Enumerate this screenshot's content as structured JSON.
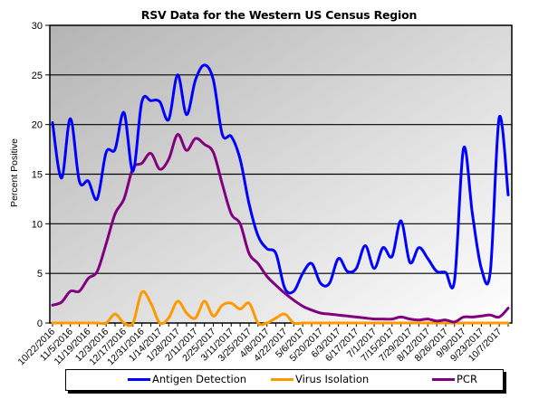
{
  "chart_data": {
    "type": "line",
    "title": "RSV Data for the Western US Census Region",
    "xlabel": "",
    "ylabel": "Percent Positive",
    "ylim": [
      0,
      30
    ],
    "yticks": [
      0,
      5,
      10,
      15,
      20,
      25,
      30
    ],
    "grid": true,
    "legend_position": "bottom",
    "x_tick_labels": [
      "10/22/2016",
      "11/5/2016",
      "11/19/2016",
      "12/3/2016",
      "12/17/2016",
      "12/31/2016",
      "1/14/2017",
      "1/28/2017",
      "2/11/2017",
      "2/25/2017",
      "3/11/2017",
      "3/25/2017",
      "4/8/2017",
      "4/22/2017",
      "5/6/2017",
      "5/20/2017",
      "6/3/2017",
      "6/17/2017",
      "7/1/2017",
      "7/15/2017",
      "7/29/2017",
      "8/12/2017",
      "8/26/2017",
      "9/9/2017",
      "9/23/2017",
      "10/7/2017"
    ],
    "x": [
      "10/22/2016",
      "10/29/2016",
      "11/5/2016",
      "11/12/2016",
      "11/19/2016",
      "11/26/2016",
      "12/3/2016",
      "12/10/2016",
      "12/17/2016",
      "12/24/2016",
      "12/31/2016",
      "1/7/2017",
      "1/14/2017",
      "1/21/2017",
      "1/28/2017",
      "2/4/2017",
      "2/11/2017",
      "2/18/2017",
      "2/25/2017",
      "3/4/2017",
      "3/11/2017",
      "3/18/2017",
      "3/25/2017",
      "4/1/2017",
      "4/8/2017",
      "4/15/2017",
      "4/22/2017",
      "4/29/2017",
      "5/6/2017",
      "5/13/2017",
      "5/20/2017",
      "5/27/2017",
      "6/3/2017",
      "6/10/2017",
      "6/17/2017",
      "6/24/2017",
      "7/1/2017",
      "7/8/2017",
      "7/15/2017",
      "7/22/2017",
      "7/29/2017",
      "8/5/2017",
      "8/12/2017",
      "8/19/2017",
      "8/26/2017",
      "9/2/2017",
      "9/9/2017",
      "9/16/2017",
      "9/23/2017",
      "9/30/2017",
      "10/7/2017",
      "10/14/2017"
    ],
    "series": [
      {
        "name": "Antigen Detection",
        "color": "#0000ff",
        "values": [
          20.2,
          14.6,
          20.6,
          14.3,
          14.3,
          12.5,
          17.2,
          17.5,
          21.2,
          15.3,
          22.3,
          22.4,
          22.3,
          20.5,
          25.0,
          21.0,
          24.5,
          26.0,
          24.5,
          19.0,
          18.8,
          16.5,
          12.0,
          8.8,
          7.5,
          7.0,
          3.5,
          3.2,
          5.0,
          6.0,
          4.0,
          4.0,
          6.5,
          5.2,
          5.5,
          7.8,
          5.5,
          7.6,
          6.7,
          10.3,
          6.1,
          7.6,
          6.5,
          5.2,
          5.1,
          4.3,
          17.6,
          11.0,
          5.5,
          5.2,
          20.7,
          12.9
        ]
      },
      {
        "name": "Virus Isolation",
        "color": "#ff9900",
        "values": [
          0,
          0,
          0,
          0,
          0,
          0,
          0,
          0.9,
          0,
          0,
          3.1,
          2.0,
          0,
          0.5,
          2.2,
          1.0,
          0.5,
          2.2,
          0.7,
          1.8,
          2.0,
          1.4,
          2.0,
          0,
          0,
          0.5,
          0.9,
          0,
          0,
          0,
          0,
          0,
          0,
          0,
          0,
          0,
          0,
          0,
          0,
          0,
          0,
          0,
          0,
          0,
          0,
          0,
          0,
          0,
          0,
          0,
          0,
          0
        ]
      },
      {
        "name": "PCR",
        "color": "#800080",
        "values": [
          1.8,
          2.1,
          3.2,
          3.2,
          4.5,
          5.2,
          8.0,
          11.0,
          12.5,
          15.6,
          16.1,
          17.1,
          15.5,
          16.5,
          19.0,
          17.4,
          18.6,
          18.0,
          17.2,
          14.0,
          11.0,
          10.0,
          7.0,
          6.0,
          4.7,
          3.8,
          3.0,
          2.3,
          1.7,
          1.3,
          1.0,
          0.9,
          0.8,
          0.7,
          0.6,
          0.5,
          0.4,
          0.4,
          0.4,
          0.6,
          0.4,
          0.3,
          0.4,
          0.2,
          0.3,
          0.1,
          0.6,
          0.6,
          0.7,
          0.8,
          0.6,
          1.5
        ]
      }
    ]
  },
  "labels": {
    "title": "RSV Data for the Western US Census Region",
    "ylabel": "Percent Positive"
  },
  "legend": {
    "items": [
      {
        "label": "Antigen Detection",
        "color": "#0000ff"
      },
      {
        "label": "Virus Isolation",
        "color": "#ff9900"
      },
      {
        "label": "PCR",
        "color": "#800080"
      }
    ]
  },
  "style": {
    "plot_gradient_start": "#b4b4b4",
    "plot_gradient_end": "#ffffff"
  }
}
